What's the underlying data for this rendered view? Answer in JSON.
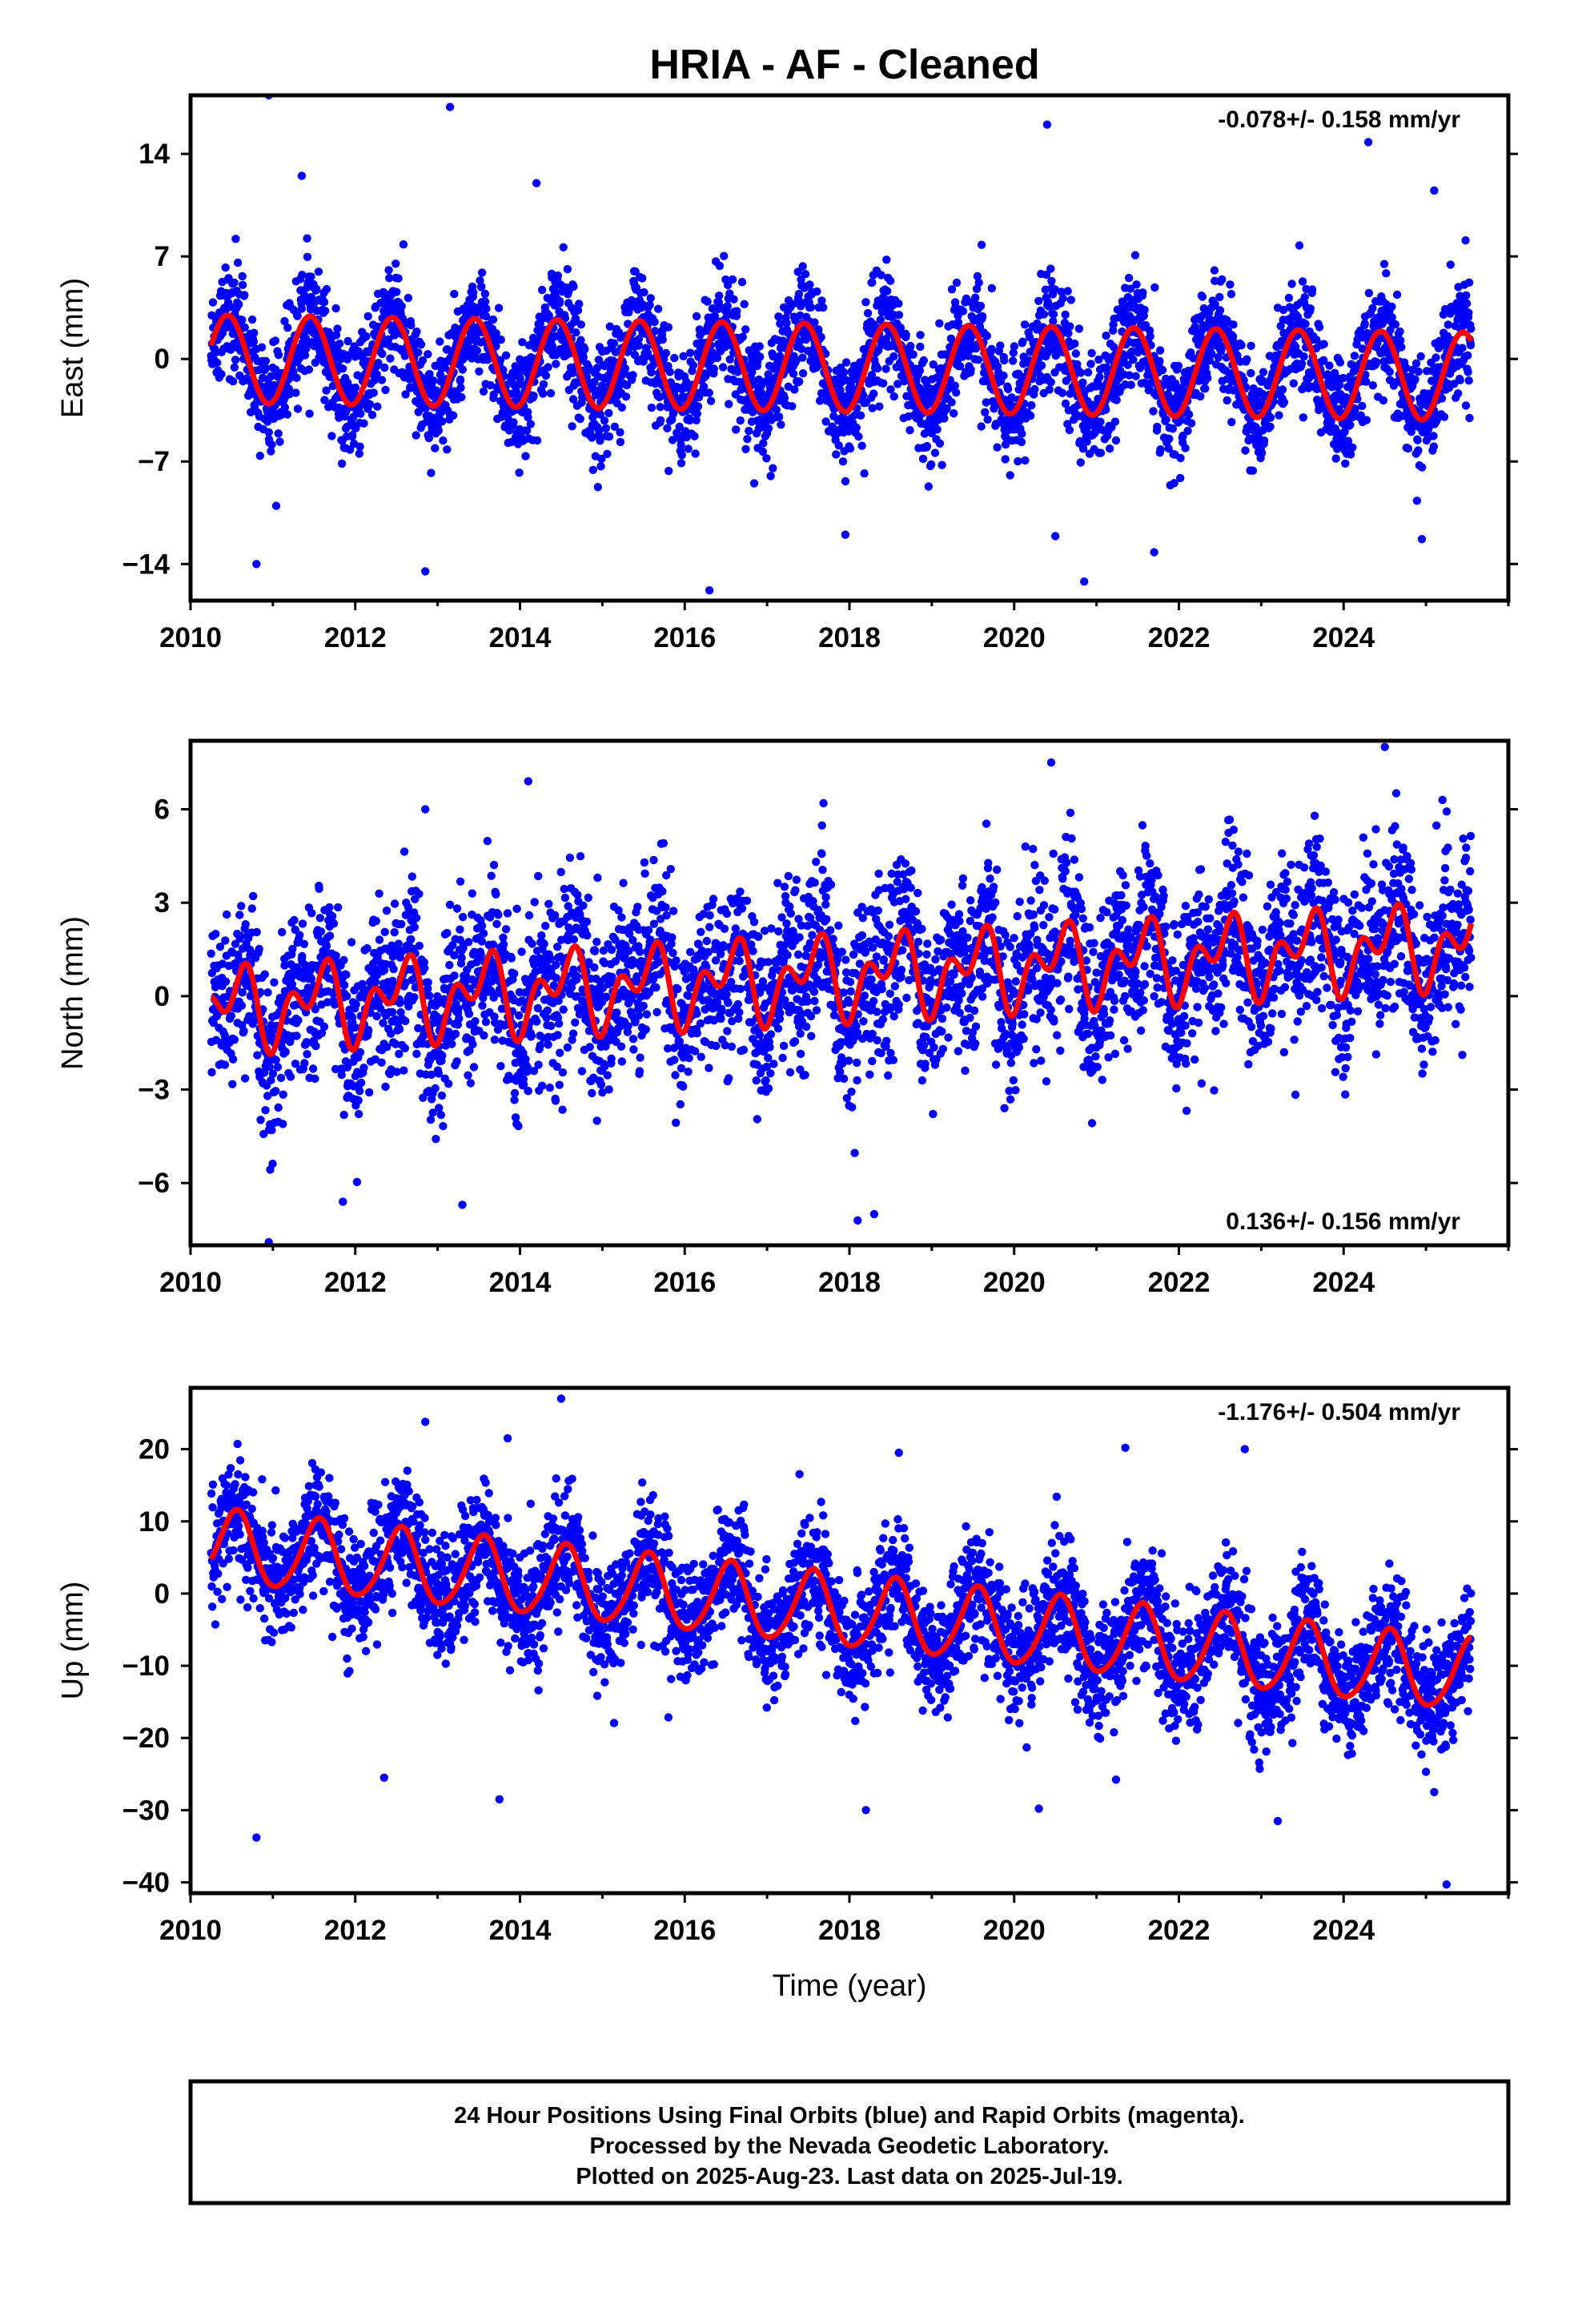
{
  "title": "HRIA  - AF - Cleaned",
  "colors": {
    "final_orbits": "#0000ff",
    "model_fit": "#ff0000",
    "frame": "#000000"
  },
  "chart_data": [
    {
      "type": "scatter",
      "panel": "east",
      "xlabel": "",
      "ylabel": "East (mm)",
      "xlim": [
        2010.0,
        2026.0
      ],
      "ylim": [
        -16.5,
        18.0
      ],
      "xticks": [
        2010,
        2012,
        2014,
        2016,
        2018,
        2020,
        2022,
        2024
      ],
      "yticks": [
        -14,
        -7,
        0,
        7,
        14
      ],
      "ytick_labels": [
        "−14",
        "−7",
        "0",
        "7",
        "14"
      ],
      "rate_label": "-0.078+/- 0.158 mm/yr",
      "rate_position": "top-right",
      "grid": false,
      "data_span": [
        2010.25,
        2025.55
      ],
      "model": {
        "name": "",
        "offset": 0.0,
        "trend": -0.078,
        "annual_amp": 3.0,
        "annual_phase_peak": 0.45,
        "semiannual_amp": 0.0,
        "semiannual_phase_peak": 0.0
      },
      "noise_sd": 1.9,
      "daily_positions_note_count": 4200,
      "outliers": [
        [
          2010.95,
          18.0
        ],
        [
          2013.15,
          17.2
        ],
        [
          2020.4,
          16.0
        ],
        [
          2024.3,
          14.8
        ],
        [
          2025.1,
          11.5
        ],
        [
          2011.35,
          12.5
        ],
        [
          2014.2,
          12.0
        ],
        [
          2012.85,
          -14.5
        ],
        [
          2016.3,
          -15.8
        ],
        [
          2020.85,
          -15.2
        ],
        [
          2010.8,
          -14.0
        ],
        [
          2017.95,
          -12.0
        ],
        [
          2024.95,
          -12.3
        ],
        [
          2021.7,
          -13.2
        ],
        [
          2020.5,
          -12.1
        ]
      ]
    },
    {
      "type": "scatter",
      "panel": "north",
      "xlabel": "",
      "ylabel": "North (mm)",
      "xlim": [
        2010.0,
        2026.0
      ],
      "ylim": [
        -8.0,
        8.2
      ],
      "xticks": [
        2010,
        2012,
        2014,
        2016,
        2018,
        2020,
        2022,
        2024
      ],
      "yticks": [
        -6,
        -3,
        0,
        3,
        6
      ],
      "ytick_labels": [
        "−6",
        "−3",
        "0",
        "3",
        "6"
      ],
      "rate_label": "0.136+/- 0.156 mm/yr",
      "rate_position": "bottom-right",
      "grid": false,
      "data_span": [
        2010.25,
        2025.55
      ],
      "model": {
        "name": "",
        "offset": -0.4,
        "trend": 0.136,
        "annual_amp": 0.9,
        "annual_phase_peak": 0.55,
        "semiannual_amp": 0.8,
        "semiannual_phase_peak": 0.2
      },
      "noise_sd": 1.4,
      "daily_positions_note_count": 4200,
      "outliers": [
        [
          2024.5,
          8.0
        ],
        [
          2020.45,
          7.5
        ],
        [
          2014.1,
          6.9
        ],
        [
          2012.85,
          6.0
        ],
        [
          2025.2,
          6.3
        ],
        [
          2010.95,
          -7.9
        ],
        [
          2018.1,
          -7.2
        ],
        [
          2018.3,
          -7.0
        ],
        [
          2013.3,
          -6.7
        ],
        [
          2011.85,
          -6.6
        ]
      ]
    },
    {
      "type": "scatter",
      "panel": "up",
      "xlabel": "Time (year)",
      "ylabel": "Up (mm)",
      "xlim": [
        2010.0,
        2026.0
      ],
      "ylim": [
        -41.5,
        28.5
      ],
      "xticks": [
        2010,
        2012,
        2014,
        2016,
        2018,
        2020,
        2022,
        2024
      ],
      "yticks": [
        -40,
        -30,
        -20,
        -10,
        0,
        10,
        20
      ],
      "ytick_labels": [
        "−40",
        "−30",
        "−20",
        "−10",
        "0",
        "10",
        "20"
      ],
      "rate_label": "-1.176+/- 0.504 mm/yr",
      "rate_position": "top-right",
      "grid": false,
      "data_span": [
        2010.25,
        2025.55
      ],
      "model": {
        "name": "",
        "offset": 6.5,
        "trend": -1.176,
        "annual_amp": 5.0,
        "annual_phase_peak": 0.55,
        "semiannual_amp": 0.6,
        "semiannual_phase_peak": 0.1
      },
      "noise_sd": 4.2,
      "daily_positions_note_count": 4200,
      "outliers": [
        [
          2014.5,
          27.0
        ],
        [
          2012.85,
          23.8
        ],
        [
          2013.85,
          21.5
        ],
        [
          2010.8,
          -33.8
        ],
        [
          2013.75,
          -28.5
        ],
        [
          2018.2,
          -30.0
        ],
        [
          2020.3,
          -29.8
        ],
        [
          2023.2,
          -31.5
        ],
        [
          2025.25,
          -40.3
        ],
        [
          2012.35,
          -25.5
        ],
        [
          2022.8,
          20.0
        ],
        [
          2021.35,
          20.2
        ],
        [
          2018.6,
          19.5
        ],
        [
          2025.1,
          -27.5
        ]
      ]
    }
  ],
  "footer": {
    "line1": "24 Hour Positions Using Final Orbits (blue) and Rapid Orbits (magenta).",
    "line2": "Processed by the Nevada Geodetic Laboratory.",
    "line3": "Plotted on 2025-Aug-23. Last data on 2025-Jul-19."
  }
}
